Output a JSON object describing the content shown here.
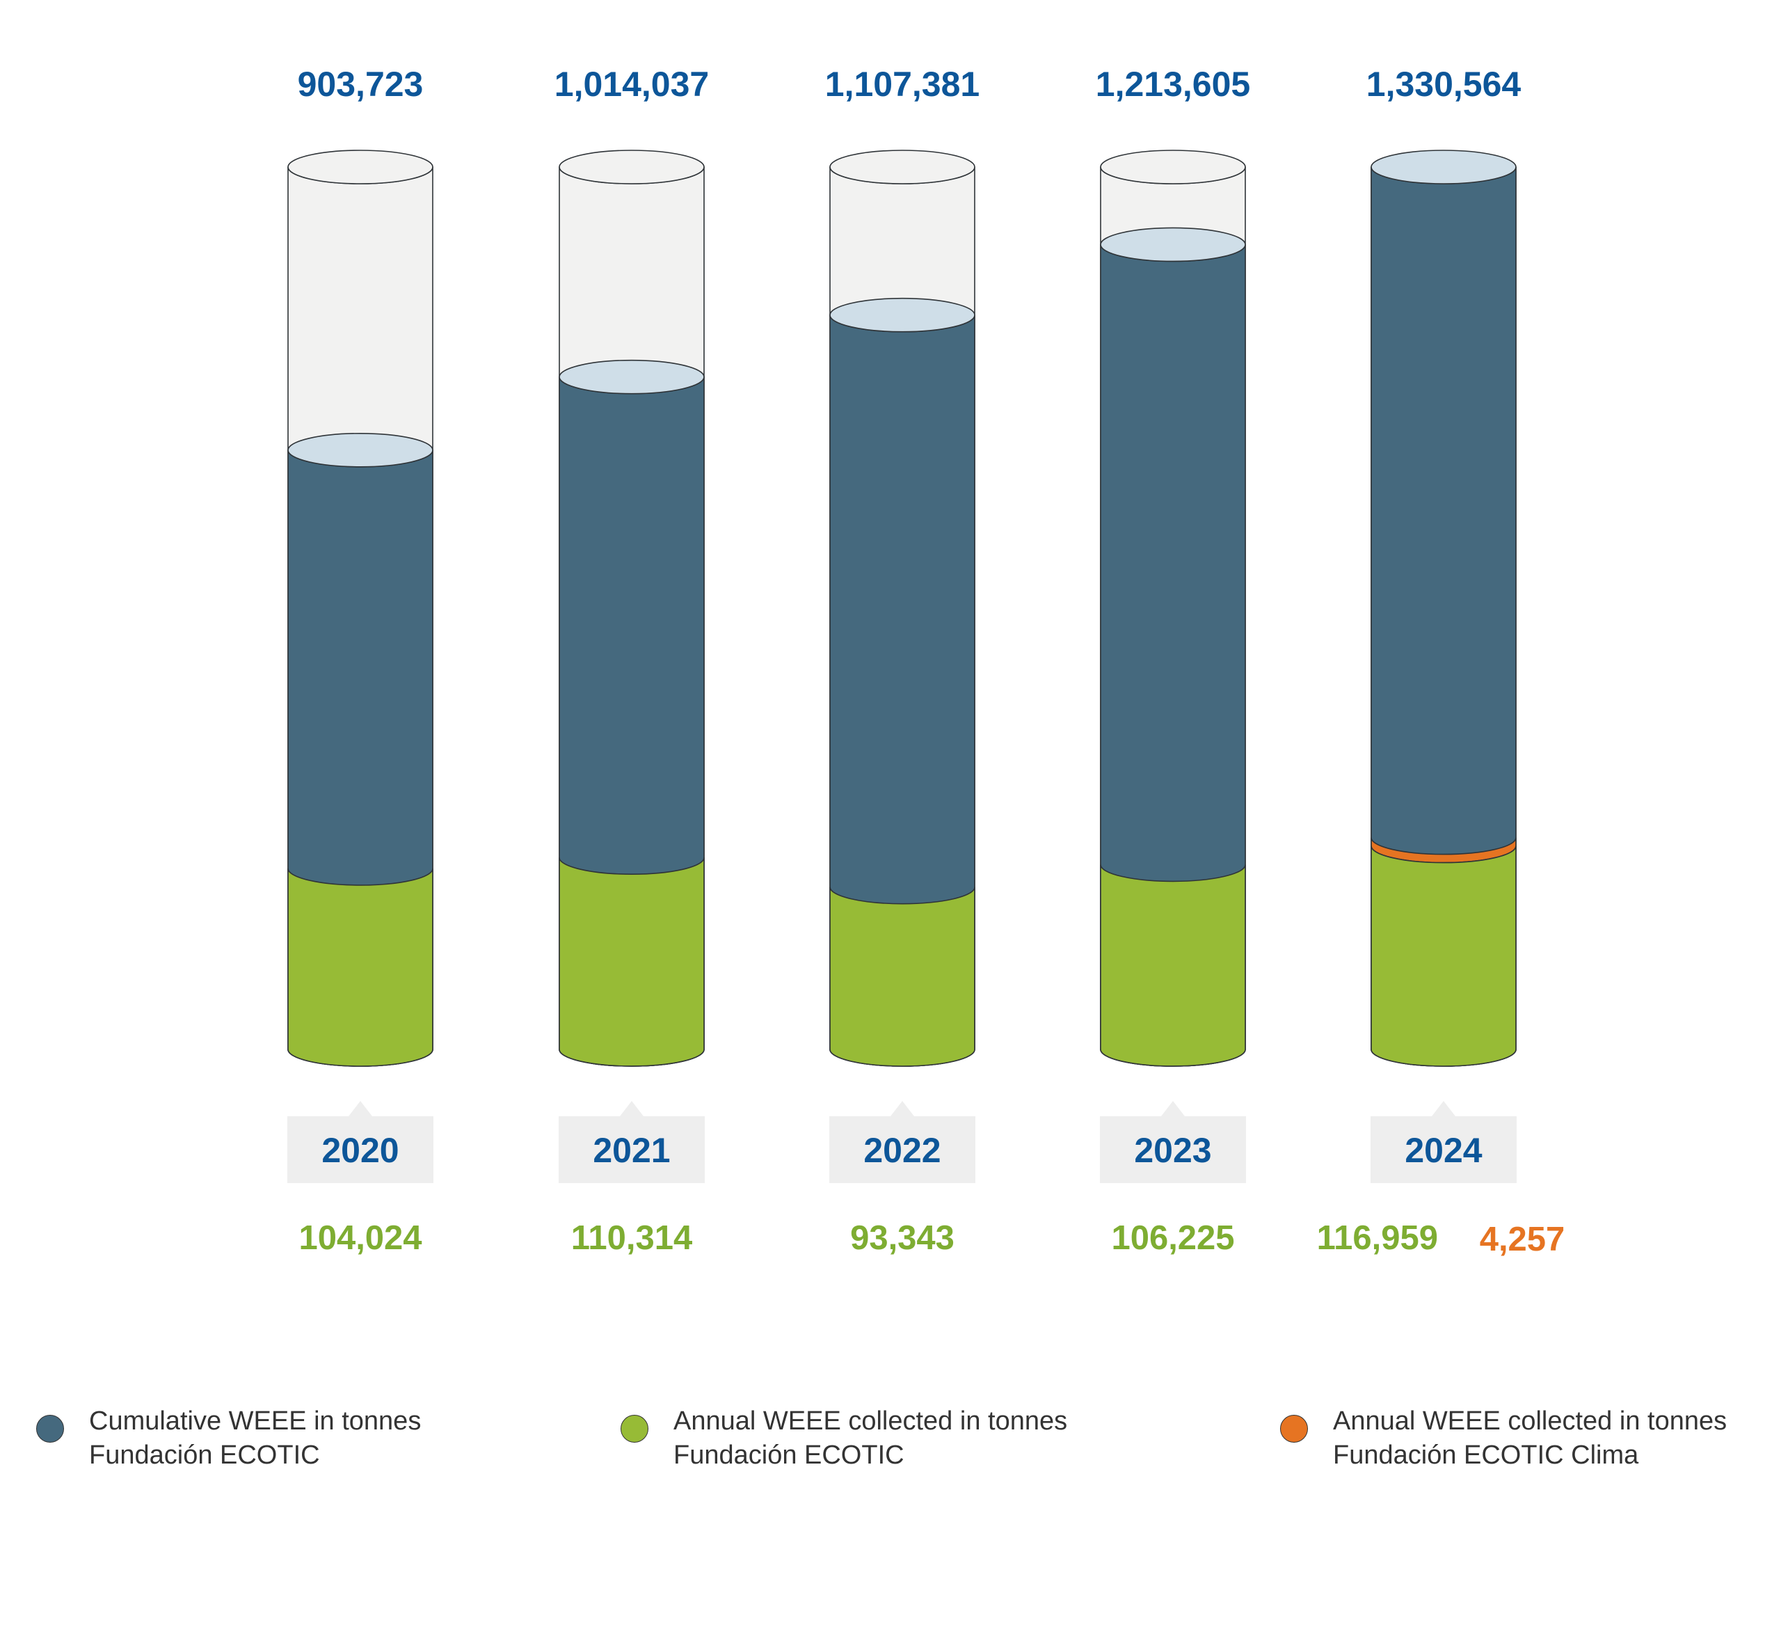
{
  "chart_data": {
    "type": "bar",
    "title": "",
    "xlabel": "",
    "ylabel": "",
    "categories": [
      "2020",
      "2021",
      "2022",
      "2023",
      "2024"
    ],
    "series": [
      {
        "name": "Cumulative WEEE in tonnes Fundación ECOTIC",
        "values": [
          903723,
          1014037,
          1107381,
          1213605,
          1330564
        ],
        "labels": [
          "903,723",
          "1,014,037",
          "1,107,381",
          "1,213,605",
          "1,330,564"
        ],
        "color": "#45697e"
      },
      {
        "name": "Annual WEEE collected in tonnes Fundación ECOTIC",
        "values": [
          104024,
          110314,
          93343,
          106225,
          116959
        ],
        "labels": [
          "104,024",
          "110,314",
          "93,343",
          "106,225",
          "116,959"
        ],
        "color": "#97bb36"
      },
      {
        "name": "Annual WEEE collected in tonnes Fundación ECOTIC Clima",
        "values": [
          null,
          null,
          null,
          null,
          4257
        ],
        "labels": [
          "",
          "",
          "",
          "",
          "4,257"
        ],
        "color": "#e67422"
      }
    ],
    "ylim": [
      0,
      1330564
    ],
    "grid": false,
    "legend_position": "bottom"
  },
  "colors": {
    "total_label": "#0d5699",
    "year_label": "#0d5699",
    "annual_label": "#7ead32",
    "clima_label": "#e67422",
    "cylinder_empty": "#f2f2f1",
    "cylinder_top": "#cfdee8",
    "cylinder_outline": "#2f3438",
    "year_tab": "#eeeeee"
  },
  "legend": [
    {
      "line1": "Cumulative WEEE in tonnes",
      "line2": "Fundación ECOTIC",
      "color": "#45697e"
    },
    {
      "line1": "Annual WEEE collected in tonnes",
      "line2": "Fundación ECOTIC",
      "color": "#97bb36"
    },
    {
      "line1": "Annual WEEE collected in tonnes",
      "line2": "Fundación ECOTIC Clima",
      "color": "#e67422"
    }
  ]
}
